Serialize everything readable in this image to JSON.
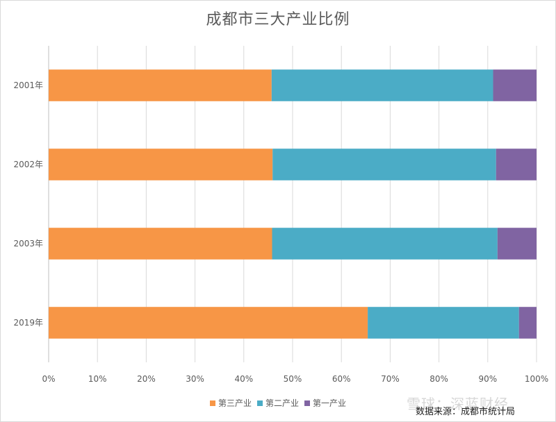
{
  "chart_data": {
    "type": "bar",
    "orientation": "horizontal",
    "stacked": "percent",
    "title": "成都市三大产业比例",
    "categories": [
      "2001年",
      "2002年",
      "2003年",
      "2019年"
    ],
    "series": [
      {
        "name": "第三产业",
        "color": "#F79646",
        "values": [
          45.7,
          45.9,
          45.8,
          65.4
        ]
      },
      {
        "name": "第二产业",
        "color": "#4BACC6",
        "values": [
          45.4,
          45.8,
          46.2,
          31.0
        ]
      },
      {
        "name": "第一产业",
        "color": "#8064A2",
        "values": [
          8.9,
          8.3,
          8.0,
          3.6
        ]
      }
    ],
    "x_ticks": [
      "0%",
      "10%",
      "20%",
      "30%",
      "40%",
      "50%",
      "60%",
      "70%",
      "80%",
      "90%",
      "100%"
    ],
    "xlim": [
      0,
      100
    ],
    "grid": true,
    "legend_position": "bottom"
  },
  "watermark": "雪球：深蓝财经",
  "source": "数据来源：成都市统计局"
}
